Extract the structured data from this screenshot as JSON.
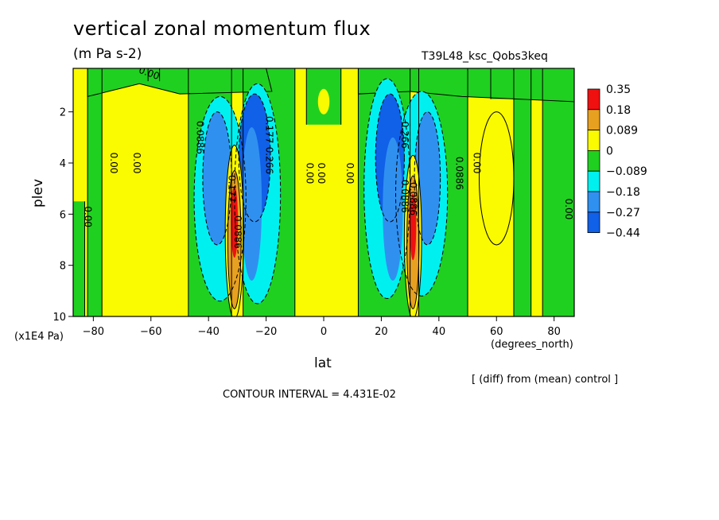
{
  "title": "vertical zonal momentum flux",
  "units": "(m Pa s-2)",
  "experiment": "T39L48_ksc_Qobs3keq",
  "diff_note": "[ (diff) from (mean) control ]",
  "contour_interval": "CONTOUR INTERVAL = 4.431E-02",
  "colors": {
    "red": "#f01010",
    "orange": "#e8a020",
    "yellow": "#fafa00",
    "green": "#20d020",
    "cyan": "#00f0f0",
    "blue": "#3090f0",
    "darkblue": "#1060e8"
  },
  "chart_data": {
    "type": "heatmap",
    "title": "vertical zonal momentum flux",
    "subtitle": "(m Pa s-2)",
    "xlabel": "lat",
    "xunit": "(degrees_north)",
    "ylabel": "plev",
    "yunit": "(x1E4 Pa)",
    "xlim": [
      -87,
      87
    ],
    "ylim": [
      10,
      0.3
    ],
    "x_ticks": [
      -80,
      -60,
      -40,
      -20,
      0,
      20,
      40,
      60,
      80
    ],
    "x_tick_labels": [
      "−80",
      "−60",
      "−40",
      "−20",
      "0",
      "20",
      "40",
      "60",
      "80"
    ],
    "y_ticks": [
      2,
      4,
      6,
      8,
      10
    ],
    "y_tick_labels": [
      "2",
      "4",
      "6",
      "8",
      "10"
    ],
    "colorbar": {
      "labels": [
        "0.35",
        "0.18",
        "0.089",
        "0",
        "−0.089",
        "−0.18",
        "−0.27",
        "−0.44"
      ],
      "colors": [
        "#f01010",
        "#e8a020",
        "#fafa00",
        "#20d020",
        "#00f0f0",
        "#3090f0",
        "#1060e8"
      ]
    },
    "contour_labels": [
      {
        "text": "0.00",
        "x": -61,
        "y": 0.6
      },
      {
        "text": "0.00",
        "x": -83,
        "y": 6.1
      },
      {
        "text": "0.00",
        "x": -74,
        "y": 4.0
      },
      {
        "text": "0.00",
        "x": -66,
        "y": 4.0
      },
      {
        "text": "0.0886",
        "x": -44,
        "y": 3.0
      },
      {
        "text": "0.177",
        "x": -33,
        "y": 5.0
      },
      {
        "text": "0.0886",
        "x": -31,
        "y": 6.7
      },
      {
        "text": "0.177",
        "x": -20,
        "y": 2.7
      },
      {
        "text": "0.266",
        "x": -20,
        "y": 3.9
      },
      {
        "text": "0.00",
        "x": -6,
        "y": 4.4
      },
      {
        "text": "0.00",
        "x": -2,
        "y": 4.4
      },
      {
        "text": "0.00",
        "x": 8,
        "y": 4.4
      },
      {
        "text": "0.266",
        "x": 27,
        "y": 2.9
      },
      {
        "text": "0.0886",
        "x": 27,
        "y": 5.3
      },
      {
        "text": "0.0886",
        "x": 30,
        "y": 5.4
      },
      {
        "text": "0.0886",
        "x": 46,
        "y": 4.4
      },
      {
        "text": "0.00",
        "x": 52,
        "y": 4.0
      },
      {
        "text": "0.00",
        "x": 84,
        "y": 5.8
      }
    ]
  }
}
